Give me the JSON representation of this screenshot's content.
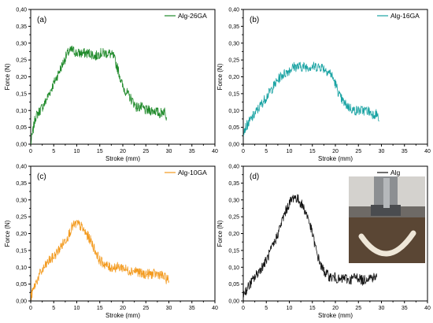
{
  "chart_data": [
    {
      "type": "line",
      "panel_label": "(a)",
      "xlabel": "Stroke (mm)",
      "ylabel": "Force (N)",
      "xlim": [
        0,
        40
      ],
      "ylim": [
        0,
        0.4
      ],
      "x_ticks": [
        "0",
        "5",
        "10",
        "15",
        "20",
        "25",
        "30",
        "35",
        "40"
      ],
      "y_ticks": [
        "0,00",
        "0,05",
        "0,10",
        "0,15",
        "0,20",
        "0,25",
        "0,30",
        "0,35",
        "0,40"
      ],
      "legend_position": "top-right",
      "series": [
        {
          "name": "Alg-26GA",
          "color": "#1f8a2a",
          "x": [
            0,
            1,
            2,
            3,
            4,
            5,
            6,
            7,
            8,
            9,
            10,
            11,
            12,
            13,
            14,
            15,
            16,
            17,
            18,
            19,
            20,
            21,
            22,
            23,
            24,
            25,
            26,
            27,
            28,
            29,
            29.5
          ],
          "y": [
            0.0,
            0.08,
            0.1,
            0.12,
            0.15,
            0.18,
            0.21,
            0.24,
            0.27,
            0.28,
            0.27,
            0.27,
            0.27,
            0.27,
            0.26,
            0.27,
            0.27,
            0.27,
            0.26,
            0.22,
            0.17,
            0.15,
            0.13,
            0.11,
            0.11,
            0.1,
            0.1,
            0.1,
            0.09,
            0.1,
            0.08
          ]
        }
      ]
    },
    {
      "type": "line",
      "panel_label": "(b)",
      "xlabel": "Stroke (mm)",
      "ylabel": "Force (N)",
      "xlim": [
        0,
        40
      ],
      "ylim": [
        0,
        0.4
      ],
      "x_ticks": [
        "0",
        "5",
        "10",
        "15",
        "20",
        "25",
        "30",
        "35",
        "40"
      ],
      "y_ticks": [
        "0,00",
        "0,05",
        "0,10",
        "0,15",
        "0,20",
        "0,25",
        "0,30",
        "0,35",
        "0,40"
      ],
      "legend_position": "top-right",
      "series": [
        {
          "name": "Alg-16GA",
          "color": "#1aa3a3",
          "x": [
            0,
            1,
            2,
            3,
            4,
            5,
            6,
            7,
            8,
            9,
            10,
            11,
            12,
            13,
            14,
            15,
            16,
            17,
            18,
            19,
            20,
            21,
            22,
            23,
            24,
            25,
            26,
            27,
            28,
            29,
            29.5
          ],
          "y": [
            0.04,
            0.06,
            0.08,
            0.1,
            0.12,
            0.14,
            0.16,
            0.18,
            0.2,
            0.21,
            0.22,
            0.23,
            0.23,
            0.23,
            0.23,
            0.23,
            0.23,
            0.23,
            0.22,
            0.21,
            0.18,
            0.14,
            0.12,
            0.11,
            0.1,
            0.1,
            0.1,
            0.1,
            0.09,
            0.09,
            0.07
          ]
        }
      ]
    },
    {
      "type": "line",
      "panel_label": "(c)",
      "xlabel": "Stroke (mm)",
      "ylabel": "Force (N)",
      "xlim": [
        0,
        40
      ],
      "ylim": [
        0,
        0.4
      ],
      "x_ticks": [
        "0",
        "5",
        "10",
        "15",
        "20",
        "25",
        "30",
        "35",
        "40"
      ],
      "y_ticks": [
        "0,00",
        "0,05",
        "0,10",
        "0,15",
        "0,20",
        "0,25",
        "0,30",
        "0,35",
        "0,40"
      ],
      "legend_position": "top-right",
      "series": [
        {
          "name": "Alg-10GA",
          "color": "#f39a1e",
          "x": [
            0,
            1,
            2,
            3,
            4,
            5,
            6,
            7,
            8,
            9,
            10,
            11,
            12,
            13,
            14,
            15,
            16,
            17,
            18,
            19,
            20,
            21,
            22,
            23,
            24,
            25,
            26,
            27,
            28,
            29,
            30
          ],
          "y": [
            0.01,
            0.05,
            0.08,
            0.1,
            0.12,
            0.13,
            0.15,
            0.17,
            0.19,
            0.22,
            0.23,
            0.22,
            0.2,
            0.18,
            0.15,
            0.12,
            0.11,
            0.1,
            0.1,
            0.1,
            0.1,
            0.09,
            0.09,
            0.09,
            0.08,
            0.08,
            0.08,
            0.08,
            0.08,
            0.07,
            0.06
          ]
        }
      ]
    },
    {
      "type": "line",
      "panel_label": "(d)",
      "xlabel": "Stroke (mm)",
      "ylabel": "Force (N)",
      "xlim": [
        0,
        40
      ],
      "ylim": [
        0,
        0.4
      ],
      "x_ticks": [
        "0",
        "5",
        "10",
        "15",
        "20",
        "25",
        "30",
        "35",
        "40"
      ],
      "y_ticks": [
        "0,00",
        "0,05",
        "0,10",
        "0,15",
        "0,20",
        "0,25",
        "0,30",
        "0,35",
        "0,40"
      ],
      "legend_position": "top-right",
      "inset_photo": true,
      "series": [
        {
          "name": "Alg",
          "color": "#111111",
          "x": [
            0,
            1,
            2,
            3,
            4,
            5,
            6,
            7,
            8,
            9,
            10,
            11,
            12,
            13,
            14,
            15,
            16,
            17,
            18,
            19,
            20,
            21,
            22,
            23,
            24,
            25,
            26,
            27,
            28,
            29
          ],
          "y": [
            0.02,
            0.04,
            0.06,
            0.08,
            0.1,
            0.12,
            0.15,
            0.18,
            0.22,
            0.26,
            0.29,
            0.31,
            0.3,
            0.28,
            0.25,
            0.2,
            0.14,
            0.1,
            0.08,
            0.07,
            0.07,
            0.06,
            0.07,
            0.06,
            0.07,
            0.07,
            0.06,
            0.07,
            0.07,
            0.07
          ]
        }
      ]
    }
  ]
}
